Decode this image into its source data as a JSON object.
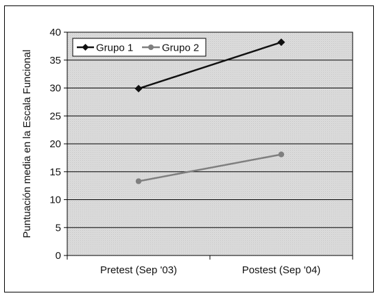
{
  "chart_data": {
    "type": "line",
    "title": "",
    "xlabel": "",
    "ylabel": "Puntuación media en la Escala Funcional",
    "categories": [
      "Pretest (Sep '03)",
      "Postest (Sep '04)"
    ],
    "yticks": [
      "0",
      "5",
      "10",
      "15",
      "20",
      "25",
      "30",
      "35",
      "40"
    ],
    "ylim": [
      0,
      40
    ],
    "grid": "horizontal",
    "legend_position": "top-left",
    "plot_background": "#d9d9d9",
    "series": [
      {
        "name": "Grupo 1",
        "values": [
          29.9,
          38.2
        ],
        "color": "#111111",
        "marker": "diamond"
      },
      {
        "name": "Grupo 2",
        "values": [
          13.3,
          18.1
        ],
        "color": "#7f7f7f",
        "marker": "circle"
      }
    ]
  }
}
